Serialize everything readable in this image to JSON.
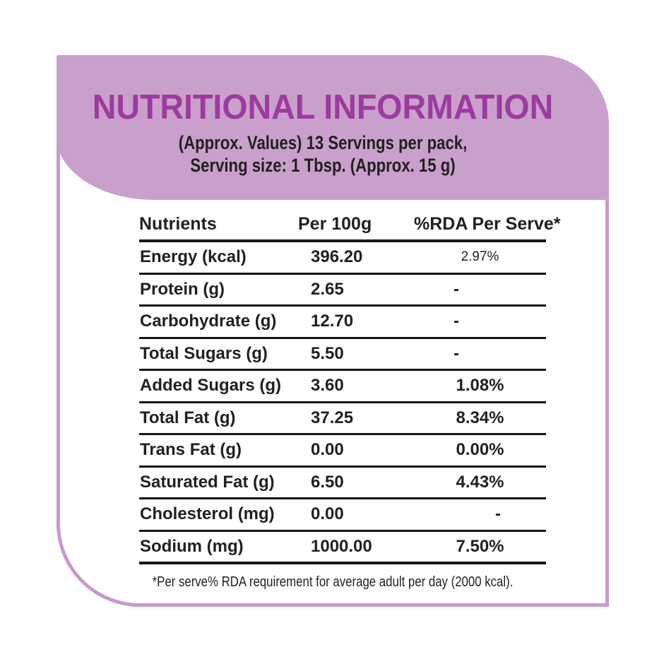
{
  "label": {
    "title": "NUTRITIONAL INFORMATION",
    "serving_line1": "(Approx. Values) 13 Servings per pack,",
    "serving_line2": "Serving size: 1 Tbsp. (Approx. 15 g)",
    "footnote": "*Per serve% RDA requirement for average adult per day (2000 kcal)."
  },
  "table": {
    "columns": [
      "Nutrients",
      "Per 100g",
      "%RDA Per Serve*"
    ],
    "rows": [
      {
        "nutrient": "Energy (kcal)",
        "per_100g": "396.20",
        "rda_per_serve": "2.97%"
      },
      {
        "nutrient": "Protein (g)",
        "per_100g": "2.65",
        "rda_per_serve": "-"
      },
      {
        "nutrient": "Carbohydrate (g)",
        "per_100g": "12.70",
        "rda_per_serve": "-"
      },
      {
        "nutrient": "Total Sugars (g)",
        "per_100g": "5.50",
        "rda_per_serve": "-"
      },
      {
        "nutrient": "Added Sugars (g)",
        "per_100g": "3.60",
        "rda_per_serve": "1.08%"
      },
      {
        "nutrient": "Total Fat (g)",
        "per_100g": "37.25",
        "rda_per_serve": "8.34%"
      },
      {
        "nutrient": "Trans Fat (g)",
        "per_100g": "0.00",
        "rda_per_serve": "0.00%"
      },
      {
        "nutrient": "Saturated Fat (g)",
        "per_100g": "6.50",
        "rda_per_serve": "4.43%"
      },
      {
        "nutrient": "Cholesterol (mg)",
        "per_100g": "0.00",
        "rda_per_serve": "-"
      },
      {
        "nutrient": "Sodium (mg)",
        "per_100g": "1000.00",
        "rda_per_serve": "7.50%"
      }
    ]
  },
  "colors": {
    "header_fill": "#c9a0cb",
    "card_border": "#c999cc",
    "title_text": "#9d3aa0",
    "body_text": "#231f20",
    "table_rule": "#181512"
  }
}
